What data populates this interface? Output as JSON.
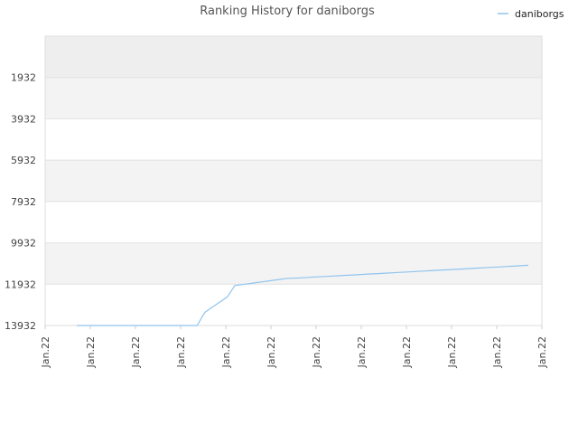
{
  "chart_data": {
    "type": "line",
    "title": "Ranking History for daniborgs",
    "xlabel": "",
    "ylabel": "",
    "y_inverted": true,
    "ylim": [
      13932,
      -68
    ],
    "y_ticks": [
      "1932",
      "3932",
      "5932",
      "7932",
      "9932",
      "11932",
      "13932"
    ],
    "x_ticks": [
      "Jan.22",
      "Jan.22",
      "Jan.22",
      "Jan.22",
      "Jan.22",
      "Jan.22",
      "Jan.22",
      "Jan.22",
      "Jan.22",
      "Jan.22",
      "Jan.22",
      "Jan.22"
    ],
    "legend": {
      "position": "top-right"
    },
    "grid": true,
    "series": [
      {
        "name": "daniborgs",
        "color": "#90c4ee",
        "values": [
          13932,
          13932,
          13932,
          13932,
          13932,
          13932,
          13932,
          13932,
          13932,
          13932,
          13932,
          13932,
          13932,
          13932,
          13932,
          13932,
          13932,
          13300,
          13050,
          12800,
          12550,
          12000,
          11950,
          11900,
          11850,
          11800,
          11750,
          11700,
          11650,
          11640,
          11620,
          11600,
          11580,
          11560,
          11540,
          11520,
          11500,
          11480,
          11460,
          11440,
          11420,
          11400,
          11380,
          11360,
          11340,
          11320,
          11300,
          11280,
          11260,
          11240,
          11220,
          11200,
          11180,
          11160,
          11140,
          11120,
          11100,
          11080,
          11060,
          11040,
          11020
        ]
      }
    ]
  }
}
